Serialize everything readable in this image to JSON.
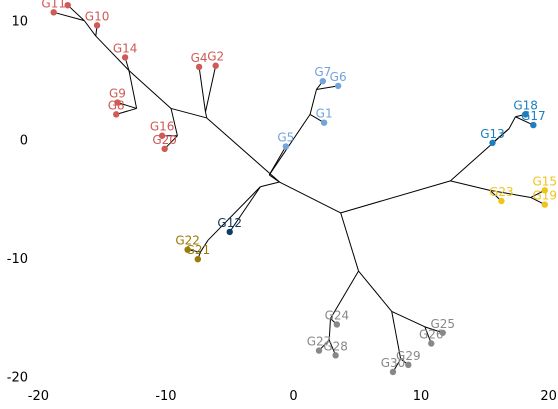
{
  "chart_data": {
    "type": "scatter",
    "subtype": "unrooted-tree",
    "title": "",
    "xlabel": "",
    "ylabel": "",
    "xlim": [
      -20.5,
      20.5
    ],
    "ylim": [
      -20.7,
      11.4
    ],
    "xticks": [
      -20,
      -10,
      0,
      10,
      20
    ],
    "yticks": [
      10,
      0,
      -10,
      -20
    ],
    "grid": false,
    "group_colors": {
      "red": "#d05a55",
      "lightblue": "#74a3dc",
      "blue": "#1f7ebf",
      "yellow": "#f0c419",
      "navy": "#0d3d61",
      "olive": "#9a7b06",
      "gray": "#888888"
    },
    "leaves": [
      {
        "id": "G3",
        "x": -17.7,
        "y": 11.3,
        "group": "red"
      },
      {
        "id": "G11",
        "x": -18.8,
        "y": 10.7,
        "group": "red"
      },
      {
        "id": "G10",
        "x": -15.4,
        "y": 9.6,
        "group": "red"
      },
      {
        "id": "G14",
        "x": -13.2,
        "y": 6.9,
        "group": "red"
      },
      {
        "id": "G4",
        "x": -7.4,
        "y": 6.1,
        "group": "red"
      },
      {
        "id": "G2",
        "x": -6.1,
        "y": 6.2,
        "group": "red"
      },
      {
        "id": "G9",
        "x": -13.8,
        "y": 3.1,
        "group": "red"
      },
      {
        "id": "G8",
        "x": -13.9,
        "y": 2.1,
        "group": "red"
      },
      {
        "id": "G16",
        "x": -10.3,
        "y": 0.3,
        "group": "red"
      },
      {
        "id": "G20",
        "x": -10.1,
        "y": -0.8,
        "group": "red"
      },
      {
        "id": "G7",
        "x": 2.3,
        "y": 4.9,
        "group": "lightblue"
      },
      {
        "id": "G6",
        "x": 3.5,
        "y": 4.5,
        "group": "lightblue"
      },
      {
        "id": "G1",
        "x": 2.4,
        "y": 1.4,
        "group": "lightblue"
      },
      {
        "id": "G5",
        "x": -0.6,
        "y": -0.6,
        "group": "lightblue"
      },
      {
        "id": "G18",
        "x": 18.2,
        "y": 2.1,
        "group": "blue"
      },
      {
        "id": "G17",
        "x": 18.8,
        "y": 1.2,
        "group": "blue"
      },
      {
        "id": "G13",
        "x": 15.6,
        "y": -0.3,
        "group": "blue"
      },
      {
        "id": "G23",
        "x": 16.3,
        "y": -5.2,
        "group": "yellow"
      },
      {
        "id": "G15",
        "x": 19.7,
        "y": -4.3,
        "group": "yellow"
      },
      {
        "id": "G19",
        "x": 19.7,
        "y": -5.5,
        "group": "yellow"
      },
      {
        "id": "G12",
        "x": -5.0,
        "y": -7.8,
        "group": "navy"
      },
      {
        "id": "G22",
        "x": -8.3,
        "y": -9.3,
        "group": "olive"
      },
      {
        "id": "G21",
        "x": -7.5,
        "y": -10.1,
        "group": "olive"
      },
      {
        "id": "G24",
        "x": 3.4,
        "y": -15.6,
        "group": "gray"
      },
      {
        "id": "G27",
        "x": 2.0,
        "y": -17.8,
        "group": "gray"
      },
      {
        "id": "G28",
        "x": 3.3,
        "y": -18.2,
        "group": "gray"
      },
      {
        "id": "G25",
        "x": 11.7,
        "y": -16.3,
        "group": "gray"
      },
      {
        "id": "G26",
        "x": 10.8,
        "y": -17.2,
        "group": "gray"
      },
      {
        "id": "G30",
        "x": 7.8,
        "y": -19.6,
        "group": "gray"
      },
      {
        "id": "G29",
        "x": 9.0,
        "y": -19.0,
        "group": "gray"
      }
    ],
    "internal_nodes": [
      {
        "id": "C",
        "x": 3.7,
        "y": -6.2
      },
      {
        "id": "N1",
        "x": -1.1,
        "y": -3.6
      },
      {
        "id": "N2",
        "x": -6.8,
        "y": 1.8
      },
      {
        "id": "N3",
        "x": -9.6,
        "y": 2.6
      },
      {
        "id": "N4",
        "x": -12.9,
        "y": 5.8
      },
      {
        "id": "N5",
        "x": -15.5,
        "y": 8.7
      },
      {
        "id": "N6",
        "x": -16.4,
        "y": 10.0
      },
      {
        "id": "N7",
        "x": -12.3,
        "y": 2.6
      },
      {
        "id": "N8",
        "x": -9.1,
        "y": 0.3
      },
      {
        "id": "N9",
        "x": -6.9,
        "y": 2.3
      },
      {
        "id": "N10",
        "x": -1.9,
        "y": -3.0
      },
      {
        "id": "N11",
        "x": 1.3,
        "y": 2.1
      },
      {
        "id": "N12",
        "x": 1.8,
        "y": 4.2
      },
      {
        "id": "N13",
        "x": -2.6,
        "y": -4.0
      },
      {
        "id": "N14",
        "x": -6.7,
        "y": -8.5
      },
      {
        "id": "N15",
        "x": 12.3,
        "y": -3.5
      },
      {
        "id": "N16",
        "x": 16.9,
        "y": 0.9
      },
      {
        "id": "N17",
        "x": 17.4,
        "y": 1.9
      },
      {
        "id": "N18",
        "x": 15.4,
        "y": -4.3
      },
      {
        "id": "N19",
        "x": 18.6,
        "y": -4.9
      },
      {
        "id": "N20",
        "x": 5.1,
        "y": -11.1
      },
      {
        "id": "N21",
        "x": 2.9,
        "y": -15.1
      },
      {
        "id": "N22",
        "x": 2.8,
        "y": -16.9
      },
      {
        "id": "N23",
        "x": 7.7,
        "y": -14.5
      },
      {
        "id": "N24",
        "x": 8.4,
        "y": -18.5
      },
      {
        "id": "N25",
        "x": 10.3,
        "y": -15.8
      },
      {
        "id": "N26",
        "x": -7.3,
        "y": -9.5
      }
    ],
    "edges": [
      [
        "C",
        "N1"
      ],
      [
        "C",
        "N15"
      ],
      [
        "C",
        "N20"
      ],
      [
        "N1",
        "N2"
      ],
      [
        "N1",
        "N10"
      ],
      [
        "N1",
        "N13"
      ],
      [
        "N2",
        "N3"
      ],
      [
        "N2",
        "N9"
      ],
      [
        "N9",
        "G4"
      ],
      [
        "N9",
        "G2"
      ],
      [
        "N3",
        "N4"
      ],
      [
        "N3",
        "N8"
      ],
      [
        "N4",
        "N5"
      ],
      [
        "N4",
        "N7"
      ],
      [
        "N4",
        "G14"
      ],
      [
        "N5",
        "N6"
      ],
      [
        "N5",
        "G10"
      ],
      [
        "N6",
        "G3"
      ],
      [
        "N6",
        "G11"
      ],
      [
        "N7",
        "G9"
      ],
      [
        "N7",
        "G8"
      ],
      [
        "N8",
        "G16"
      ],
      [
        "N8",
        "G20"
      ],
      [
        "N10",
        "G5"
      ],
      [
        "N10",
        "N11"
      ],
      [
        "N11",
        "G1"
      ],
      [
        "N11",
        "N12"
      ],
      [
        "N12",
        "G7"
      ],
      [
        "N12",
        "G6"
      ],
      [
        "N13",
        "G12"
      ],
      [
        "N13",
        "N14"
      ],
      [
        "N14",
        "N26"
      ],
      [
        "N26",
        "G22"
      ],
      [
        "N26",
        "G21"
      ],
      [
        "N15",
        "N16"
      ],
      [
        "N15",
        "N18"
      ],
      [
        "N16",
        "G13"
      ],
      [
        "N16",
        "N17"
      ],
      [
        "N17",
        "G18"
      ],
      [
        "N17",
        "G17"
      ],
      [
        "N18",
        "G23"
      ],
      [
        "N18",
        "N19"
      ],
      [
        "N19",
        "G15"
      ],
      [
        "N19",
        "G19"
      ],
      [
        "N20",
        "N21"
      ],
      [
        "N20",
        "N23"
      ],
      [
        "N21",
        "G24"
      ],
      [
        "N21",
        "N22"
      ],
      [
        "N22",
        "G27"
      ],
      [
        "N22",
        "G28"
      ],
      [
        "N23",
        "N24"
      ],
      [
        "N23",
        "N25"
      ],
      [
        "N24",
        "G30"
      ],
      [
        "N24",
        "G29"
      ],
      [
        "N25",
        "G25"
      ],
      [
        "N25",
        "G26"
      ]
    ]
  }
}
